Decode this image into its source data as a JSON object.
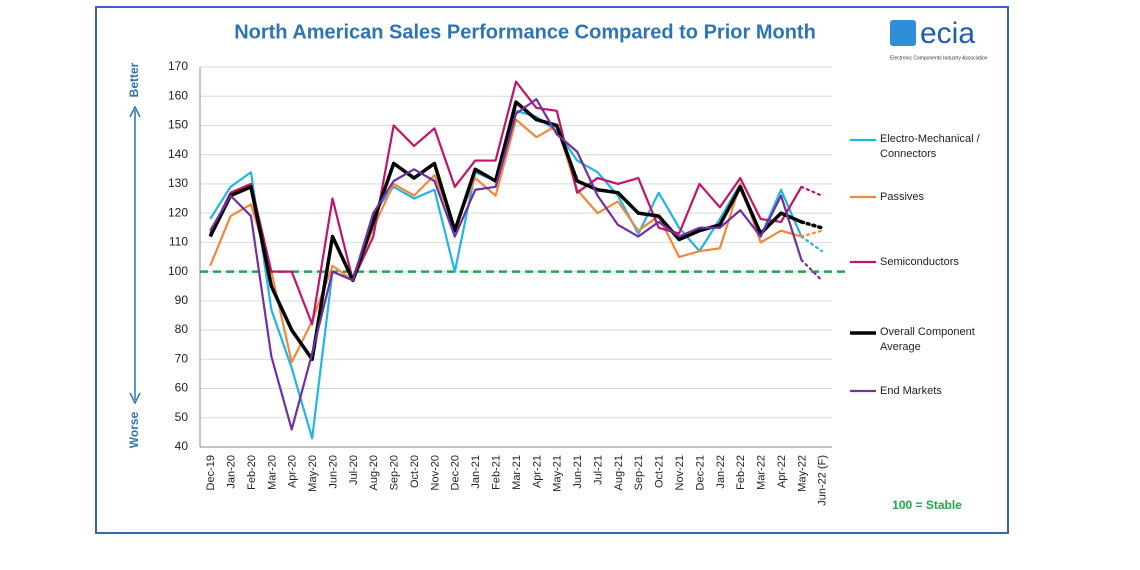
{
  "chart_data": {
    "type": "line",
    "title": "North American Sales Performance Compared to Prior Month",
    "logo": {
      "name": "ecia",
      "subtitle": "Electronic Components Industry Association"
    },
    "annotations": {
      "better": "Better",
      "worse": "Worse"
    },
    "reference_line": {
      "value": 100,
      "label": "100 = Stable",
      "color": "#1fa84a"
    },
    "categories": [
      "Dec-19",
      "Jan-20",
      "Feb-20",
      "Mar-20",
      "Apr-20",
      "May-20",
      "Jun-20",
      "Jul-20",
      "Aug-20",
      "Sep-20",
      "Oct-20",
      "Nov-20",
      "Dec-20",
      "Jan-21",
      "Feb-21",
      "Mar-21",
      "Apr-21",
      "May-21",
      "Jun-21",
      "Jul-21",
      "Aug-21",
      "Sep-21",
      "Oct-21",
      "Nov-21",
      "Dec-21",
      "Jan-22",
      "Feb-22",
      "Mar-22",
      "Apr-22",
      "May-22",
      "Jun-22 (F)"
    ],
    "series": [
      {
        "name": "Electro-Mechanical / Connectors",
        "color": "#1fb5e6",
        "values": [
          118,
          129,
          134,
          87,
          67,
          43,
          100,
          97,
          120,
          129,
          125,
          128,
          100,
          134,
          131,
          155,
          153,
          148,
          138,
          134,
          126,
          113,
          127,
          115,
          107,
          118,
          130,
          112,
          128,
          112,
          107
        ]
      },
      {
        "name": "Passives",
        "color": "#f0883a",
        "values": [
          102,
          119,
          123,
          100,
          69,
          83,
          102,
          97,
          115,
          130,
          126,
          133,
          115,
          132,
          126,
          152,
          146,
          150,
          128,
          120,
          124,
          114,
          119,
          105,
          107,
          108,
          130,
          110,
          114,
          112,
          114
        ]
      },
      {
        "name": "Semiconductors",
        "color": "#c0146c",
        "values": [
          113,
          127,
          130,
          100,
          100,
          82,
          125,
          97,
          112,
          150,
          143,
          149,
          129,
          138,
          138,
          165,
          156,
          155,
          127,
          132,
          130,
          132,
          115,
          113,
          130,
          122,
          132,
          118,
          117,
          129,
          126
        ]
      },
      {
        "name": "Overall Component Average",
        "color": "#000000",
        "values": [
          112,
          126,
          129,
          95,
          80,
          70,
          112,
          97,
          117,
          137,
          132,
          137,
          114,
          135,
          131,
          158,
          152,
          150,
          131,
          128,
          127,
          120,
          119,
          111,
          114,
          116,
          129,
          113,
          120,
          117,
          115
        ]
      },
      {
        "name": "End Markets",
        "color": "#7030a0",
        "values": [
          114,
          126,
          119,
          71,
          46,
          72,
          100,
          97,
          120,
          131,
          135,
          131,
          112,
          128,
          129,
          154,
          159,
          147,
          141,
          126,
          116,
          112,
          117,
          112,
          115,
          115,
          121,
          112,
          126,
          104,
          97
        ]
      }
    ],
    "ylim": [
      40,
      170
    ],
    "yticks": [
      40,
      50,
      60,
      70,
      80,
      90,
      100,
      110,
      120,
      130,
      140,
      150,
      160,
      170
    ],
    "grid": true
  }
}
